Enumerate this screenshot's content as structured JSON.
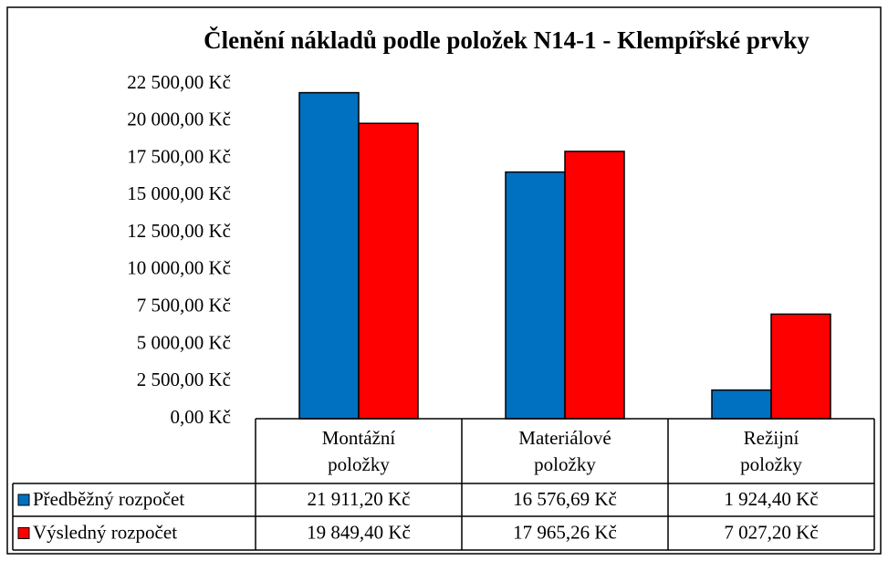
{
  "chart_data": {
    "type": "bar",
    "title": "Členění nákladů podle položek N14-1 - Klempířské prvky",
    "categories": [
      "Montážní položky",
      "Materiálové položky",
      "Režijní položky"
    ],
    "series": [
      {
        "name": "Předběžný rozpočet",
        "color": "#0070c0",
        "values": [
          21911.2,
          16576.69,
          1924.4
        ],
        "value_labels": [
          "21 911,20 Kč",
          "16 576,69 Kč",
          "1 924,40 Kč"
        ]
      },
      {
        "name": "Výsledný rozpočet",
        "color": "#ff0000",
        "values": [
          19849.4,
          17965.26,
          7027.2
        ],
        "value_labels": [
          "19 849,40 Kč",
          "17 965,26 Kč",
          "7 027,20 Kč"
        ]
      }
    ],
    "ylim": [
      0,
      22500
    ],
    "yticks": [
      {
        "value": 0,
        "label": "0,00 Kč"
      },
      {
        "value": 2500,
        "label": "2 500,00 Kč"
      },
      {
        "value": 5000,
        "label": "5 000,00 Kč"
      },
      {
        "value": 7500,
        "label": "7 500,00 Kč"
      },
      {
        "value": 10000,
        "label": "10 000,00 Kč"
      },
      {
        "value": 12500,
        "label": "12 500,00 Kč"
      },
      {
        "value": 15000,
        "label": "15 000,00 Kč"
      },
      {
        "value": 17500,
        "label": "17 500,00 Kč"
      },
      {
        "value": 20000,
        "label": "20 000,00 Kč"
      },
      {
        "value": 22500,
        "label": "22 500,00 Kč"
      }
    ],
    "grid": false,
    "legend": "table"
  }
}
